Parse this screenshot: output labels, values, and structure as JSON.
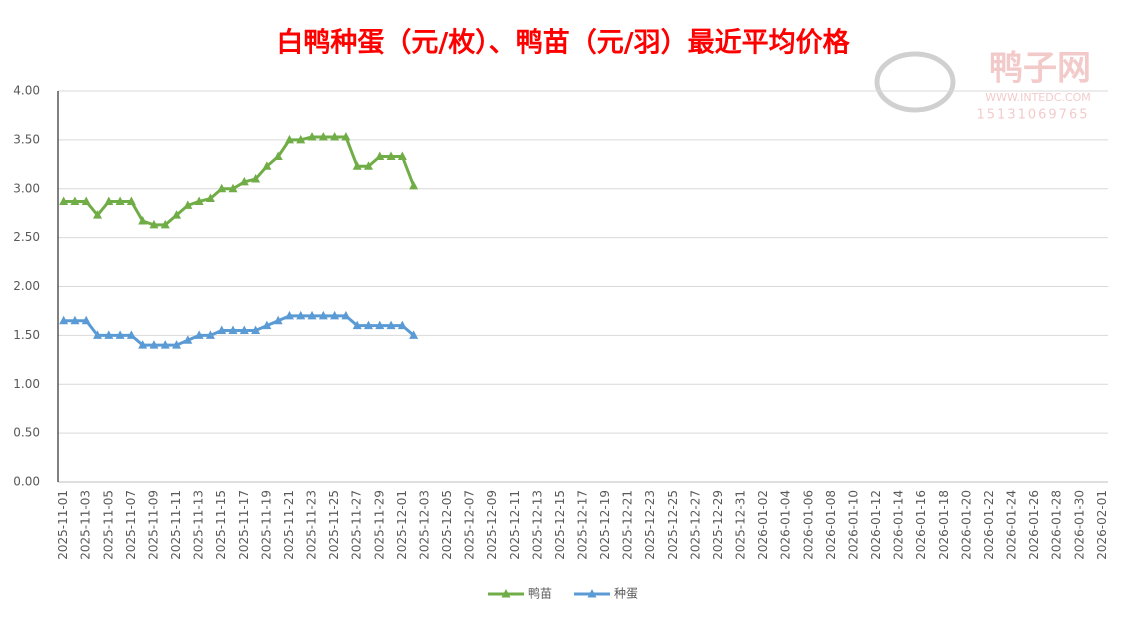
{
  "chart_data": {
    "type": "line",
    "title": "白鸭种蛋（元/枚）、鸭苗（元/羽）最近平均价格",
    "watermark": {
      "name": "鸭子网",
      "url": "WWW.INTEDC.COM",
      "phone": "15131069765"
    },
    "categories": [
      "2025-11-01",
      null,
      "2025-11-03",
      null,
      "2025-11-05",
      null,
      "2025-11-07",
      null,
      "2025-11-09",
      null,
      "2025-11-11",
      null,
      "2025-11-13",
      null,
      "2025-11-15",
      null,
      "2025-11-17",
      null,
      "2025-11-19",
      null,
      "2025-11-21",
      null,
      "2025-11-23",
      null,
      "2025-11-25",
      null,
      "2025-11-27",
      null,
      "2025-11-29",
      null,
      "2025-12-01",
      null,
      "2025-12-03",
      null,
      "2025-12-05",
      null,
      "2025-12-07",
      null,
      "2025-12-09",
      null,
      "2025-12-11",
      null,
      "2025-12-13",
      null,
      "2025-12-15",
      null,
      "2025-12-17",
      null,
      "2025-12-19",
      null,
      "2025-12-21",
      null,
      "2025-12-23",
      null,
      "2025-12-25",
      null,
      "2025-12-27",
      null,
      "2025-12-29",
      null,
      "2025-12-31",
      null,
      "2026-01-02",
      null,
      "2026-01-04",
      null,
      "2026-01-06",
      null,
      "2026-01-08",
      null,
      "2026-01-10",
      null,
      "2026-01-12",
      null,
      "2026-01-14",
      null,
      "2026-01-16",
      null,
      "2026-01-18",
      null,
      "2026-01-20",
      null,
      "2026-01-22",
      null,
      "2026-01-24",
      null,
      "2026-01-26",
      null,
      "2026-01-28",
      null,
      "2026-01-30",
      null,
      "2026-02-01"
    ],
    "series": [
      {
        "name": "鸭苗",
        "color": "#70ad47",
        "values": [
          2.87,
          2.87,
          2.87,
          2.73,
          2.87,
          2.87,
          2.87,
          2.67,
          2.63,
          2.63,
          2.73,
          2.83,
          2.87,
          2.9,
          3.0,
          3.0,
          3.07,
          3.1,
          3.23,
          3.33,
          3.5,
          3.5,
          3.53,
          3.53,
          3.53,
          3.53,
          3.23,
          3.23,
          3.33,
          3.33,
          3.33,
          3.03,
          null,
          null,
          null,
          null,
          null,
          null,
          null,
          null,
          null,
          null,
          null,
          null,
          null,
          null,
          null,
          null,
          null,
          null,
          null,
          null,
          null,
          null,
          null,
          null,
          null,
          null,
          null,
          null,
          null,
          null,
          null,
          null,
          null,
          null,
          null,
          null,
          null,
          null,
          null,
          null,
          null,
          null,
          null,
          null,
          null,
          null,
          null,
          null,
          null,
          null,
          null,
          null,
          null,
          null,
          null,
          null,
          null,
          null,
          null,
          null,
          null
        ]
      },
      {
        "name": "种蛋",
        "color": "#5b9bd5",
        "values": [
          1.65,
          1.65,
          1.65,
          1.5,
          1.5,
          1.5,
          1.5,
          1.4,
          1.4,
          1.4,
          1.4,
          1.45,
          1.5,
          1.5,
          1.55,
          1.55,
          1.55,
          1.55,
          1.6,
          1.65,
          1.7,
          1.7,
          1.7,
          1.7,
          1.7,
          1.7,
          1.6,
          1.6,
          1.6,
          1.6,
          1.6,
          1.5,
          null,
          null,
          null,
          null,
          null,
          null,
          null,
          null,
          null,
          null,
          null,
          null,
          null,
          null,
          null,
          null,
          null,
          null,
          null,
          null,
          null,
          null,
          null,
          null,
          null,
          null,
          null,
          null,
          null,
          null,
          null,
          null,
          null,
          null,
          null,
          null,
          null,
          null,
          null,
          null,
          null,
          null,
          null,
          null,
          null,
          null,
          null,
          null,
          null,
          null,
          null,
          null,
          null,
          null,
          null,
          null,
          null,
          null,
          null,
          null,
          null
        ]
      }
    ],
    "ylim": [
      0,
      4
    ],
    "yticks": [
      {
        "value": 0,
        "label": "0.00"
      },
      {
        "value": 0.5,
        "label": "0.50"
      },
      {
        "value": 1,
        "label": "1.00"
      },
      {
        "value": 1.5,
        "label": "1.50"
      },
      {
        "value": 2,
        "label": "2.00"
      },
      {
        "value": 2.5,
        "label": "2.50"
      },
      {
        "value": 3,
        "label": "3.00"
      },
      {
        "value": 3.5,
        "label": "3.50"
      },
      {
        "value": 4,
        "label": "4.00"
      }
    ],
    "grid": true,
    "legend": "bottom"
  }
}
